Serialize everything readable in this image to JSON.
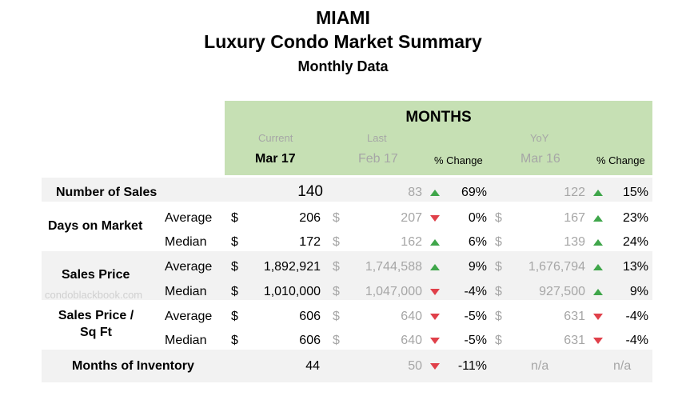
{
  "title": {
    "city": "MIAMI",
    "main": "Luxury Condo Market Summary",
    "sub": "Monthly Data"
  },
  "header": {
    "group": "MONTHS",
    "sub_current": "Current",
    "sub_last": "Last",
    "sub_yoy": "YoY",
    "col_current": "Mar 17",
    "col_last": "Feb 17",
    "col_pct1": "% Change",
    "col_yoy": "Mar 16",
    "col_pct2": "% Change"
  },
  "watermark": "condoblackbook.com",
  "colors": {
    "header_bg": "#c6e0b4",
    "band_grey": "#f2f2f2",
    "up": "#3fa64a",
    "down": "#e0404a",
    "muted": "#a6a6a6"
  },
  "rows": [
    {
      "label": "Number of Sales",
      "sub": "",
      "dollar": "",
      "cur": "140",
      "last": "83",
      "t1": "up",
      "p1": "69%",
      "yoy": "122",
      "t2": "up",
      "p2": "15%"
    },
    {
      "label": "Days on Market",
      "sub": "Average",
      "dollar": "$",
      "cur": "206",
      "last": "207",
      "t1": "down",
      "p1": "0%",
      "yoy": "167",
      "t2": "up",
      "p2": "23%"
    },
    {
      "label": "",
      "sub": "Median",
      "dollar": "$",
      "cur": "172",
      "last": "162",
      "t1": "up",
      "p1": "6%",
      "yoy": "139",
      "t2": "up",
      "p2": "24%"
    },
    {
      "label": "Sales Price",
      "sub": "Average",
      "dollar": "$",
      "cur": "1,892,921",
      "last": "1,744,588",
      "t1": "up",
      "p1": "9%",
      "yoy": "1,676,794",
      "t2": "up",
      "p2": "13%"
    },
    {
      "label": "",
      "sub": "Median",
      "dollar": "$",
      "cur": "1,010,000",
      "last": "1,047,000",
      "t1": "down",
      "p1": "-4%",
      "yoy": "927,500",
      "t2": "up",
      "p2": "9%"
    },
    {
      "label": "Sales Price /",
      "label2": "Sq Ft",
      "sub": "Average",
      "dollar": "$",
      "cur": "606",
      "last": "640",
      "t1": "down",
      "p1": "-5%",
      "yoy": "631",
      "t2": "down",
      "p2": "-4%"
    },
    {
      "label": "",
      "sub": "Median",
      "dollar": "$",
      "cur": "606",
      "last": "640",
      "t1": "down",
      "p1": "-5%",
      "yoy": "631",
      "t2": "down",
      "p2": "-4%"
    },
    {
      "label": "Months of Inventory",
      "sub": "",
      "dollar": "",
      "cur": "44",
      "last": "50",
      "t1": "down",
      "p1": "-11%",
      "yoy": "n/a",
      "t2": "",
      "p2": "n/a"
    }
  ]
}
